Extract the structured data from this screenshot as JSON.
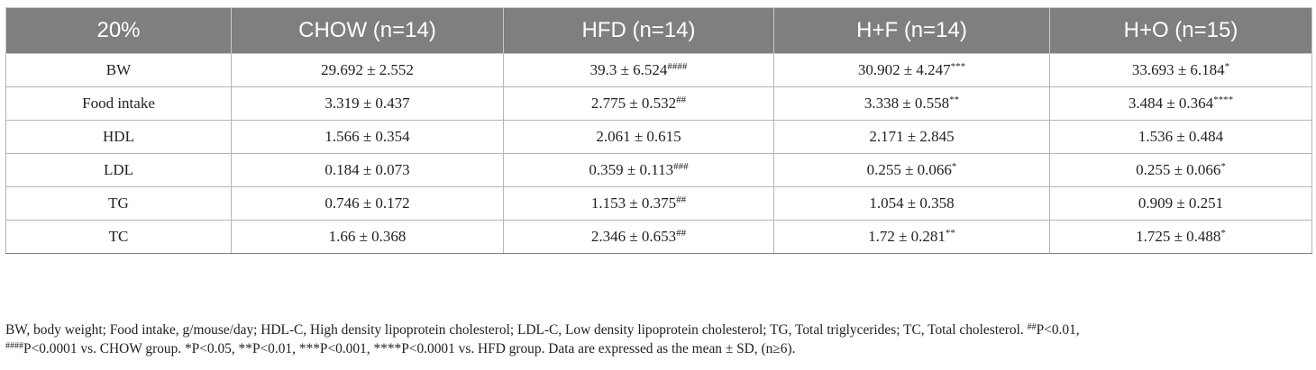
{
  "table": {
    "headers": [
      "20%",
      "CHOW (n=14)",
      "HFD (n=14)",
      "H+F (n=14)",
      "H+O (n=15)"
    ],
    "rows": [
      {
        "label": "BW",
        "cells": [
          {
            "value": "29.692 ± 2.552",
            "mark": ""
          },
          {
            "value": "39.3 ± 6.524",
            "mark": "####"
          },
          {
            "value": "30.902 ± 4.247",
            "mark": "***"
          },
          {
            "value": "33.693 ± 6.184",
            "mark": "*"
          }
        ]
      },
      {
        "label": "Food intake",
        "cells": [
          {
            "value": "3.319 ± 0.437",
            "mark": ""
          },
          {
            "value": "2.775 ± 0.532",
            "mark": "##"
          },
          {
            "value": "3.338 ± 0.558",
            "mark": "**"
          },
          {
            "value": "3.484 ± 0.364",
            "mark": "****"
          }
        ]
      },
      {
        "label": "HDL",
        "cells": [
          {
            "value": "1.566 ± 0.354",
            "mark": ""
          },
          {
            "value": "2.061 ± 0.615",
            "mark": ""
          },
          {
            "value": "2.171 ± 2.845",
            "mark": ""
          },
          {
            "value": "1.536 ± 0.484",
            "mark": ""
          }
        ]
      },
      {
        "label": "LDL",
        "cells": [
          {
            "value": "0.184 ± 0.073",
            "mark": ""
          },
          {
            "value": "0.359 ± 0.113",
            "mark": "###"
          },
          {
            "value": "0.255 ± 0.066",
            "mark": "*"
          },
          {
            "value": "0.255 ± 0.066",
            "mark": "*"
          }
        ]
      },
      {
        "label": "TG",
        "cells": [
          {
            "value": "0.746 ± 0.172",
            "mark": ""
          },
          {
            "value": "1.153 ± 0.375",
            "mark": "##"
          },
          {
            "value": "1.054 ± 0.358",
            "mark": ""
          },
          {
            "value": "0.909 ± 0.251",
            "mark": ""
          }
        ]
      },
      {
        "label": "TC",
        "cells": [
          {
            "value": "1.66 ± 0.368",
            "mark": ""
          },
          {
            "value": "2.346 ± 0.653",
            "mark": "##"
          },
          {
            "value": "1.72 ± 0.281",
            "mark": "**"
          },
          {
            "value": "1.725 ± 0.488",
            "mark": "*"
          }
        ]
      }
    ]
  },
  "footnote": {
    "line1_text": "BW, body weight; Food intake, g/mouse/day; HDL-C, High density lipoprotein cholesterol; LDL-C, Low density lipoprotein cholesterol; TG, Total triglycerides; TC, Total cholesterol. ",
    "line1_mark": "##",
    "line1_tail": "P<0.01,",
    "line2_mark": "####",
    "line2_text": "P<0.0001 vs. CHOW group. *P<0.05, **P<0.01, ***P<0.001, ****P<0.0001 vs. HFD group. Data are expressed as the mean ± SD, (n≥6)."
  },
  "colors": {
    "header_bg": "#7f7f7f",
    "header_text": "#ffffff",
    "grid_line": "#b5b5b5",
    "body_text": "#222222"
  }
}
